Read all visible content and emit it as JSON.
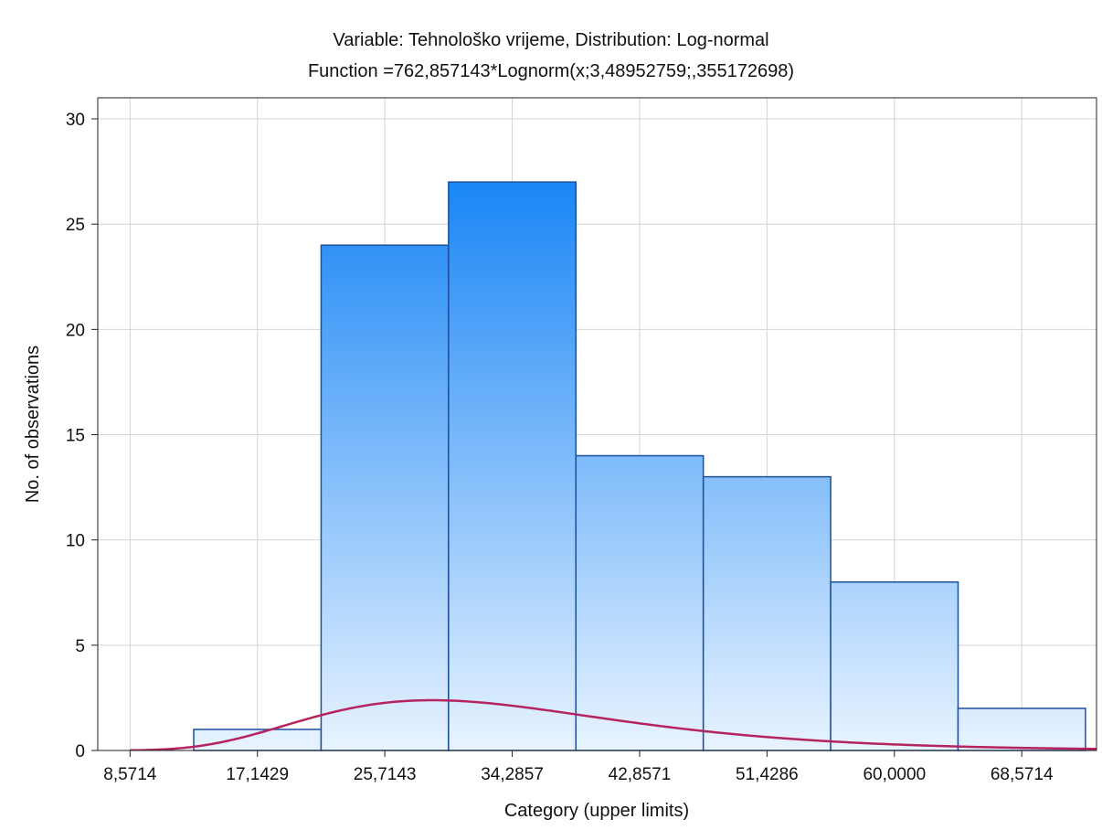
{
  "chart_data": {
    "type": "bar",
    "title": "Variable: Tehnološko vrijeme, Distribution: Log-normal",
    "subtitle": "Function =762,857143*Lognorm(x;3,48952759;,355172698)",
    "xlabel": "Category (upper limits)",
    "ylabel": "No. of observations",
    "x_tick_labels": [
      "8,5714",
      "17,1429",
      "25,7143",
      "34,2857",
      "42,8571",
      "51,4286",
      "60,0000",
      "68,5714"
    ],
    "x_ticks": [
      8.5714,
      17.1429,
      25.7143,
      34.2857,
      42.8571,
      51.4286,
      60.0,
      68.5714
    ],
    "xlim": [
      6.4,
      73.6
    ],
    "ylim": [
      0,
      31
    ],
    "y_ticks": [
      0,
      5,
      10,
      15,
      20,
      25,
      30
    ],
    "bins": [
      {
        "upper": 8.5714,
        "value": 0
      },
      {
        "upper": 17.1429,
        "value": 1
      },
      {
        "upper": 25.7143,
        "value": 24
      },
      {
        "upper": 34.2857,
        "value": 27
      },
      {
        "upper": 42.8571,
        "value": 14
      },
      {
        "upper": 51.4286,
        "value": 13
      },
      {
        "upper": 60.0,
        "value": 8
      },
      {
        "upper": 68.5714,
        "value": 2
      }
    ],
    "fit": {
      "distribution": "Log-normal",
      "scale": 762.857143,
      "mu": 3.48952759,
      "sigma": 0.355172698
    },
    "grid": true,
    "legend": "none",
    "colors": {
      "bar_top": "#1a86f5",
      "bar_bottom": "#e8f3ff",
      "bar_edge": "#1c4f9c",
      "curve": "#b5245f"
    }
  }
}
